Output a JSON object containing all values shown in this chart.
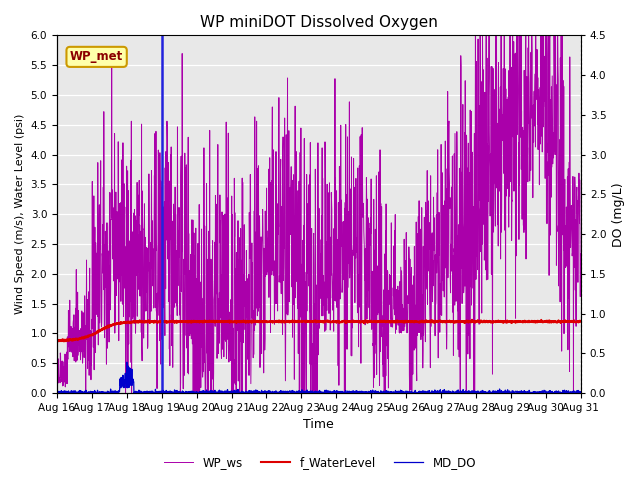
{
  "title": "WP miniDOT Dissolved Oxygen",
  "xlabel": "Time",
  "ylabel_left": "Wind Speed (m/s), Water Level (psi)",
  "ylabel_right": "DO (mg/L)",
  "annotation_text": "WP_met",
  "annotation_color": "#8B0000",
  "annotation_bg": "#FFFFAA",
  "annotation_edge": "#CC9900",
  "ylim_left": [
    0.0,
    6.0
  ],
  "ylim_right": [
    0.0,
    4.5
  ],
  "yticks_left": [
    0.0,
    0.5,
    1.0,
    1.5,
    2.0,
    2.5,
    3.0,
    3.5,
    4.0,
    4.5,
    5.0,
    5.5,
    6.0
  ],
  "yticks_right": [
    0.0,
    0.5,
    1.0,
    1.5,
    2.0,
    2.5,
    3.0,
    3.5,
    4.0,
    4.5
  ],
  "bg_color": "#E8E8E8",
  "fig_bg_color": "#FFFFFF",
  "line_wp_ws_color": "#AA00AA",
  "line_water_level_color": "#DD0000",
  "line_md_do_color": "#0000CC",
  "vertical_line_color": "#2222DD",
  "vertical_line_x": 3,
  "legend_labels": [
    "WP_ws",
    "f_WaterLevel",
    "MD_DO"
  ],
  "xtick_labels": [
    "Aug 16",
    "Aug 17",
    "Aug 18",
    "Aug 19",
    "Aug 20",
    "Aug 21",
    "Aug 22",
    "Aug 23",
    "Aug 24",
    "Aug 25",
    "Aug 26",
    "Aug 27",
    "Aug 28",
    "Aug 29",
    "Aug 30",
    "Aug 31"
  ],
  "xlim": [
    0,
    15
  ],
  "grid_color": "#FFFFFF",
  "title_fontsize": 11,
  "label_fontsize": 8,
  "tick_fontsize": 7.5
}
